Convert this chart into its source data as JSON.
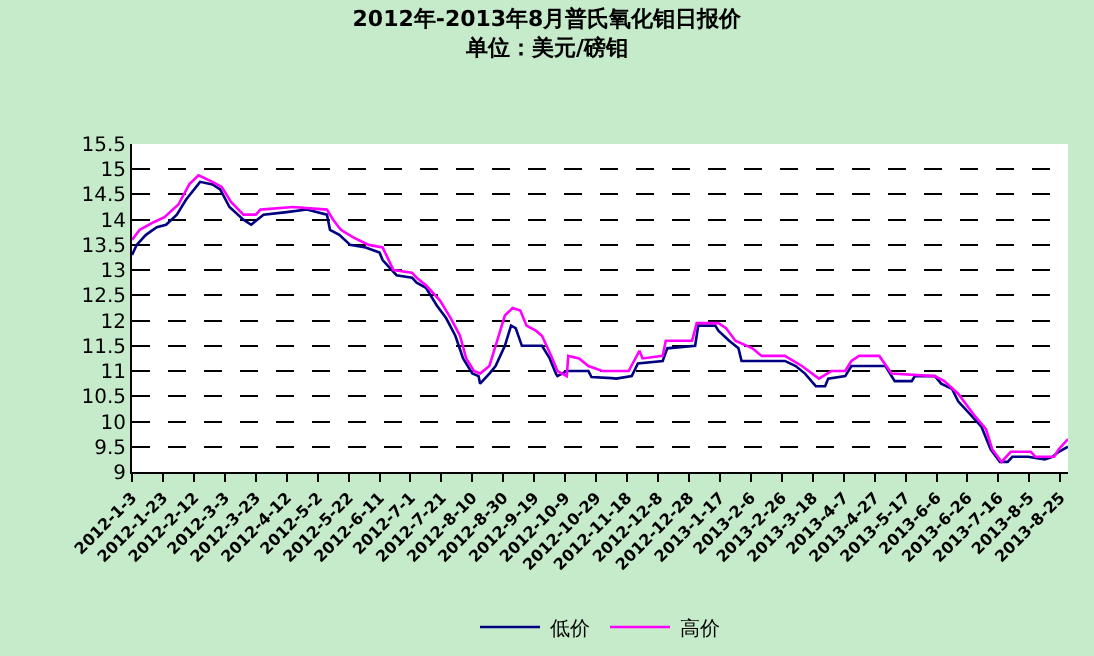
{
  "chart_data": {
    "type": "line",
    "title": "2012年-2013年8月普氏氧化钼日报价",
    "subtitle": "单位：美元/磅钼",
    "xlim": [
      "2012-01-03",
      "2013-08-30"
    ],
    "xticks": [
      {
        "value": "2012-01-03",
        "label": "2012-1-3"
      },
      {
        "value": "2012-01-23",
        "label": "2012-1-23"
      },
      {
        "value": "2012-02-12",
        "label": "2012-2-12"
      },
      {
        "value": "2012-03-03",
        "label": "2012-3-3"
      },
      {
        "value": "2012-03-23",
        "label": "2012-3-23"
      },
      {
        "value": "2012-04-12",
        "label": "2012-4-12"
      },
      {
        "value": "2012-05-02",
        "label": "2012-5-2"
      },
      {
        "value": "2012-05-22",
        "label": "2012-5-22"
      },
      {
        "value": "2012-06-11",
        "label": "2012-6-11"
      },
      {
        "value": "2012-07-01",
        "label": "2012-7-1"
      },
      {
        "value": "2012-07-21",
        "label": "2012-7-21"
      },
      {
        "value": "2012-08-10",
        "label": "2012-8-10"
      },
      {
        "value": "2012-08-30",
        "label": "2012-8-30"
      },
      {
        "value": "2012-09-19",
        "label": "2012-9-19"
      },
      {
        "value": "2012-10-09",
        "label": "2012-10-9"
      },
      {
        "value": "2012-10-29",
        "label": "2012-10-29"
      },
      {
        "value": "2012-11-18",
        "label": "2012-11-18"
      },
      {
        "value": "2012-12-08",
        "label": "2012-12-8"
      },
      {
        "value": "2012-12-28",
        "label": "2012-12-28"
      },
      {
        "value": "2013-01-17",
        "label": "2013-1-17"
      },
      {
        "value": "2013-02-06",
        "label": "2013-2-6"
      },
      {
        "value": "2013-02-26",
        "label": "2013-2-26"
      },
      {
        "value": "2013-03-18",
        "label": "2013-3-18"
      },
      {
        "value": "2013-04-07",
        "label": "2013-4-7"
      },
      {
        "value": "2013-04-27",
        "label": "2013-4-27"
      },
      {
        "value": "2013-05-17",
        "label": "2013-5-17"
      },
      {
        "value": "2013-06-06",
        "label": "2013-6-6"
      },
      {
        "value": "2013-06-26",
        "label": "2013-6-26"
      },
      {
        "value": "2013-07-16",
        "label": "2013-7-16"
      },
      {
        "value": "2013-08-05",
        "label": "2013-8-5"
      },
      {
        "value": "2013-08-25",
        "label": "2013-8-25"
      }
    ],
    "ylim": [
      9,
      15.5
    ],
    "yticks": [
      9,
      9.5,
      10,
      10.5,
      11,
      11.5,
      12,
      12.5,
      13,
      13.5,
      14,
      14.5,
      15,
      15.5
    ],
    "grid": "y",
    "legend": "bottom",
    "series": [
      {
        "name": "低价",
        "color": "#000080",
        "x": [
          "2012-01-03",
          "2012-01-06",
          "2012-01-12",
          "2012-01-19",
          "2012-01-25",
          "2012-02-01",
          "2012-02-07",
          "2012-02-16",
          "2012-02-24",
          "2012-02-29",
          "2012-03-06",
          "2012-03-15",
          "2012-03-20",
          "2012-03-28",
          "2012-04-12",
          "2012-04-25",
          "2012-05-08",
          "2012-05-10",
          "2012-05-16",
          "2012-05-23",
          "2012-06-02",
          "2012-06-11",
          "2012-06-13",
          "2012-06-22",
          "2012-07-02",
          "2012-07-05",
          "2012-07-11",
          "2012-07-18",
          "2012-07-24",
          "2012-07-30",
          "2012-08-04",
          "2012-08-10",
          "2012-08-14",
          "2012-08-15",
          "2012-08-21",
          "2012-08-25",
          "2012-08-31",
          "2012-09-04",
          "2012-09-07",
          "2012-09-11",
          "2012-09-24",
          "2012-09-29",
          "2012-10-03",
          "2012-10-04",
          "2012-10-10",
          "2012-10-24",
          "2012-10-26",
          "2012-11-08",
          "2012-11-11",
          "2012-11-21",
          "2012-11-25",
          "2012-12-11",
          "2012-12-14",
          "2013-01-01",
          "2013-01-03",
          "2013-01-14",
          "2013-01-16",
          "2013-01-23",
          "2013-01-29",
          "2013-01-31",
          "2013-02-28",
          "2013-03-07",
          "2013-03-13",
          "2013-03-20",
          "2013-03-26",
          "2013-03-28",
          "2013-04-08",
          "2013-04-12",
          "2013-05-04",
          "2013-05-10",
          "2013-05-21",
          "2013-05-23",
          "2013-06-05",
          "2013-06-09",
          "2013-06-16",
          "2013-06-20",
          "2013-06-29",
          "2013-07-05",
          "2013-07-11",
          "2013-07-17",
          "2013-07-22",
          "2013-07-25",
          "2013-08-04",
          "2013-08-15",
          "2013-08-20",
          "2013-08-24",
          "2013-08-30"
        ],
        "values": [
          13.3,
          13.5,
          13.7,
          13.85,
          13.9,
          14.1,
          14.4,
          14.75,
          14.7,
          14.6,
          14.25,
          14.0,
          13.9,
          14.1,
          14.15,
          14.2,
          14.1,
          13.8,
          13.7,
          13.5,
          13.45,
          13.35,
          13.2,
          12.9,
          12.85,
          12.75,
          12.65,
          12.3,
          12.05,
          11.7,
          11.25,
          10.95,
          10.9,
          10.75,
          10.95,
          11.1,
          11.5,
          11.9,
          11.85,
          11.5,
          11.5,
          11.25,
          10.95,
          10.9,
          11.0,
          11.0,
          10.88,
          10.86,
          10.85,
          10.9,
          11.15,
          11.2,
          11.45,
          11.5,
          11.9,
          11.9,
          11.8,
          11.6,
          11.45,
          11.2,
          11.2,
          11.1,
          10.95,
          10.7,
          10.7,
          10.85,
          10.9,
          11.1,
          11.1,
          10.8,
          10.8,
          10.9,
          10.9,
          10.75,
          10.65,
          10.4,
          10.1,
          9.9,
          9.45,
          9.2,
          9.2,
          9.3,
          9.3,
          9.25,
          9.3,
          9.4,
          9.5
        ]
      },
      {
        "name": "高价",
        "color": "#ff00ff",
        "x": [
          "2012-01-03",
          "2012-01-08",
          "2012-01-17",
          "2012-01-24",
          "2012-02-02",
          "2012-02-09",
          "2012-02-15",
          "2012-02-24",
          "2012-03-01",
          "2012-03-07",
          "2012-03-15",
          "2012-03-23",
          "2012-03-26",
          "2012-04-16",
          "2012-05-08",
          "2012-05-12",
          "2012-05-17",
          "2012-05-25",
          "2012-06-04",
          "2012-06-13",
          "2012-06-20",
          "2012-07-02",
          "2012-07-05",
          "2012-07-11",
          "2012-07-20",
          "2012-07-27",
          "2012-08-02",
          "2012-08-06",
          "2012-08-11",
          "2012-08-15",
          "2012-08-21",
          "2012-08-25",
          "2012-08-31",
          "2012-09-05",
          "2012-09-10",
          "2012-09-14",
          "2012-09-20",
          "2012-09-24",
          "2012-09-30",
          "2012-10-04",
          "2012-10-10",
          "2012-10-11",
          "2012-10-18",
          "2012-10-24",
          "2012-11-02",
          "2012-11-19",
          "2012-11-26",
          "2012-11-28",
          "2012-12-11",
          "2012-12-13",
          "2012-12-30",
          "2013-01-02",
          "2013-01-16",
          "2013-01-21",
          "2013-01-27",
          "2013-02-07",
          "2013-02-13",
          "2013-02-28",
          "2013-03-11",
          "2013-03-22",
          "2013-03-30",
          "2013-04-08",
          "2013-04-12",
          "2013-04-17",
          "2013-04-30",
          "2013-05-08",
          "2013-06-05",
          "2013-06-11",
          "2013-06-20",
          "2013-07-01",
          "2013-07-08",
          "2013-07-12",
          "2013-07-18",
          "2013-07-24",
          "2013-08-06",
          "2013-08-09",
          "2013-08-21",
          "2013-08-24",
          "2013-08-30"
        ],
        "values": [
          13.6,
          13.8,
          13.95,
          14.05,
          14.3,
          14.7,
          14.88,
          14.75,
          14.65,
          14.35,
          14.1,
          14.1,
          14.2,
          14.25,
          14.2,
          14.0,
          13.8,
          13.65,
          13.5,
          13.45,
          13.0,
          12.95,
          12.85,
          12.7,
          12.4,
          12.05,
          11.7,
          11.25,
          11.0,
          10.95,
          11.1,
          11.5,
          12.1,
          12.25,
          12.2,
          11.9,
          11.8,
          11.7,
          11.3,
          11.0,
          10.9,
          11.3,
          11.25,
          11.1,
          11.0,
          11.0,
          11.4,
          11.25,
          11.3,
          11.6,
          11.6,
          11.95,
          11.95,
          11.85,
          11.6,
          11.45,
          11.3,
          11.3,
          11.1,
          10.85,
          11.0,
          11.0,
          11.2,
          11.3,
          11.3,
          10.95,
          10.9,
          10.8,
          10.55,
          10.1,
          9.85,
          9.45,
          9.2,
          9.4,
          9.4,
          9.3,
          9.3,
          9.45,
          9.65
        ]
      }
    ]
  }
}
